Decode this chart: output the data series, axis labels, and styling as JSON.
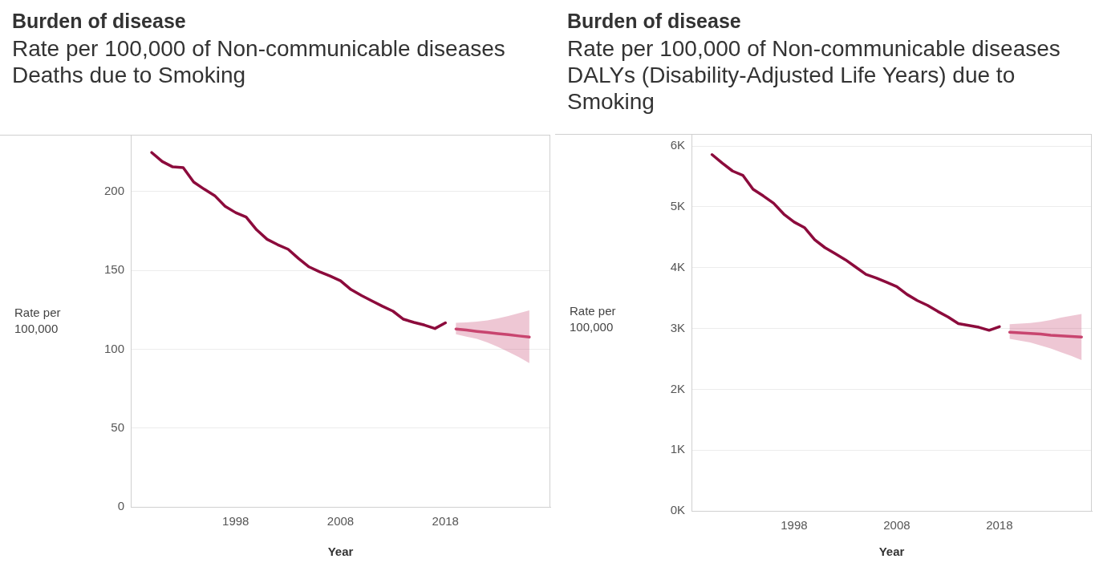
{
  "chart_data": [
    {
      "type": "line",
      "title": "Burden of disease",
      "subtitle": "Rate per 100,000 of Non-communicable diseases\nDeaths due to Smoking",
      "xlabel": "Year",
      "ylabel": "Rate per 100,000",
      "marker": "none",
      "grid": "y",
      "x": [
        1990,
        1991,
        1992,
        1993,
        1994,
        1995,
        1996,
        1997,
        1998,
        1999,
        2000,
        2001,
        2002,
        2003,
        2004,
        2005,
        2006,
        2007,
        2008,
        2009,
        2010,
        2011,
        2012,
        2013,
        2014,
        2015,
        2016,
        2017,
        2018
      ],
      "series": [
        {
          "color": "#8c0b3c",
          "values": [
            224.7,
            219.0,
            215.6,
            215.1,
            206.0,
            201.5,
            197.4,
            190.6,
            186.6,
            183.8,
            175.7,
            169.7,
            166.3,
            163.4,
            157.5,
            152.2,
            149.1,
            146.4,
            143.4,
            137.8,
            134.0,
            130.6,
            127.2,
            124.1,
            119.0,
            117.0,
            115.3,
            113.1,
            116.7
          ]
        },
        {
          "color": "#c8456f",
          "x": [
            2019,
            2020,
            2021,
            2022,
            2023,
            2024,
            2025,
            2026
          ],
          "values": [
            112.8,
            112.1,
            111.3,
            110.6,
            109.9,
            109.2,
            108.4,
            107.7
          ],
          "lower": [
            109.5,
            108.0,
            106.5,
            104.3,
            101.5,
            98.3,
            95.0,
            91.2
          ],
          "upper": [
            116.7,
            117.0,
            117.5,
            118.3,
            119.5,
            121.0,
            122.8,
            124.6
          ]
        }
      ],
      "xlim": [
        1988,
        2028
      ],
      "xticks": [
        1998,
        2008,
        2018
      ],
      "ylim": [
        0,
        236
      ],
      "yticks": [
        0,
        50,
        100,
        150,
        200
      ]
    },
    {
      "type": "line",
      "title": "Burden of disease",
      "subtitle": "Rate per 100,000 of Non-communicable diseases\nDALYs (Disability-Adjusted Life Years) due to Smoking",
      "xlabel": "Year",
      "ylabel": "Rate per 100,000",
      "marker": "none",
      "grid": "y",
      "x": [
        1990,
        1991,
        1992,
        1993,
        1994,
        1995,
        1996,
        1997,
        1998,
        1999,
        2000,
        2001,
        2002,
        2003,
        2004,
        2005,
        2006,
        2007,
        2008,
        2009,
        2010,
        2011,
        2012,
        2013,
        2014,
        2015,
        2016,
        2017,
        2018
      ],
      "series": [
        {
          "color": "#8c0b3c",
          "values": [
            5860,
            5720,
            5590,
            5520,
            5290,
            5180,
            5060,
            4880,
            4750,
            4660,
            4460,
            4330,
            4230,
            4130,
            4010,
            3890,
            3830,
            3760,
            3690,
            3560,
            3460,
            3380,
            3280,
            3190,
            3080,
            3050,
            3020,
            2970,
            3030
          ]
        },
        {
          "color": "#c8456f",
          "x": [
            2019,
            2020,
            2021,
            2022,
            2023,
            2024,
            2025,
            2026
          ],
          "values": [
            2940,
            2930,
            2920,
            2910,
            2890,
            2880,
            2870,
            2860
          ],
          "lower": [
            2830,
            2800,
            2770,
            2720,
            2670,
            2610,
            2550,
            2480
          ],
          "upper": [
            3070,
            3080,
            3090,
            3110,
            3140,
            3180,
            3210,
            3240
          ]
        }
      ],
      "xlim": [
        1988,
        2027
      ],
      "xticks": [
        1998,
        2008,
        2018
      ],
      "ylim": [
        0,
        6200
      ],
      "yticks": [
        {
          "value": 0,
          "label": "0K"
        },
        {
          "value": 1000,
          "label": "1K"
        },
        {
          "value": 2000,
          "label": "2K"
        },
        {
          "value": 3000,
          "label": "3K"
        },
        {
          "value": 4000,
          "label": "4K"
        },
        {
          "value": 5000,
          "label": "5K"
        },
        {
          "value": 6000,
          "label": "6K"
        }
      ]
    }
  ]
}
